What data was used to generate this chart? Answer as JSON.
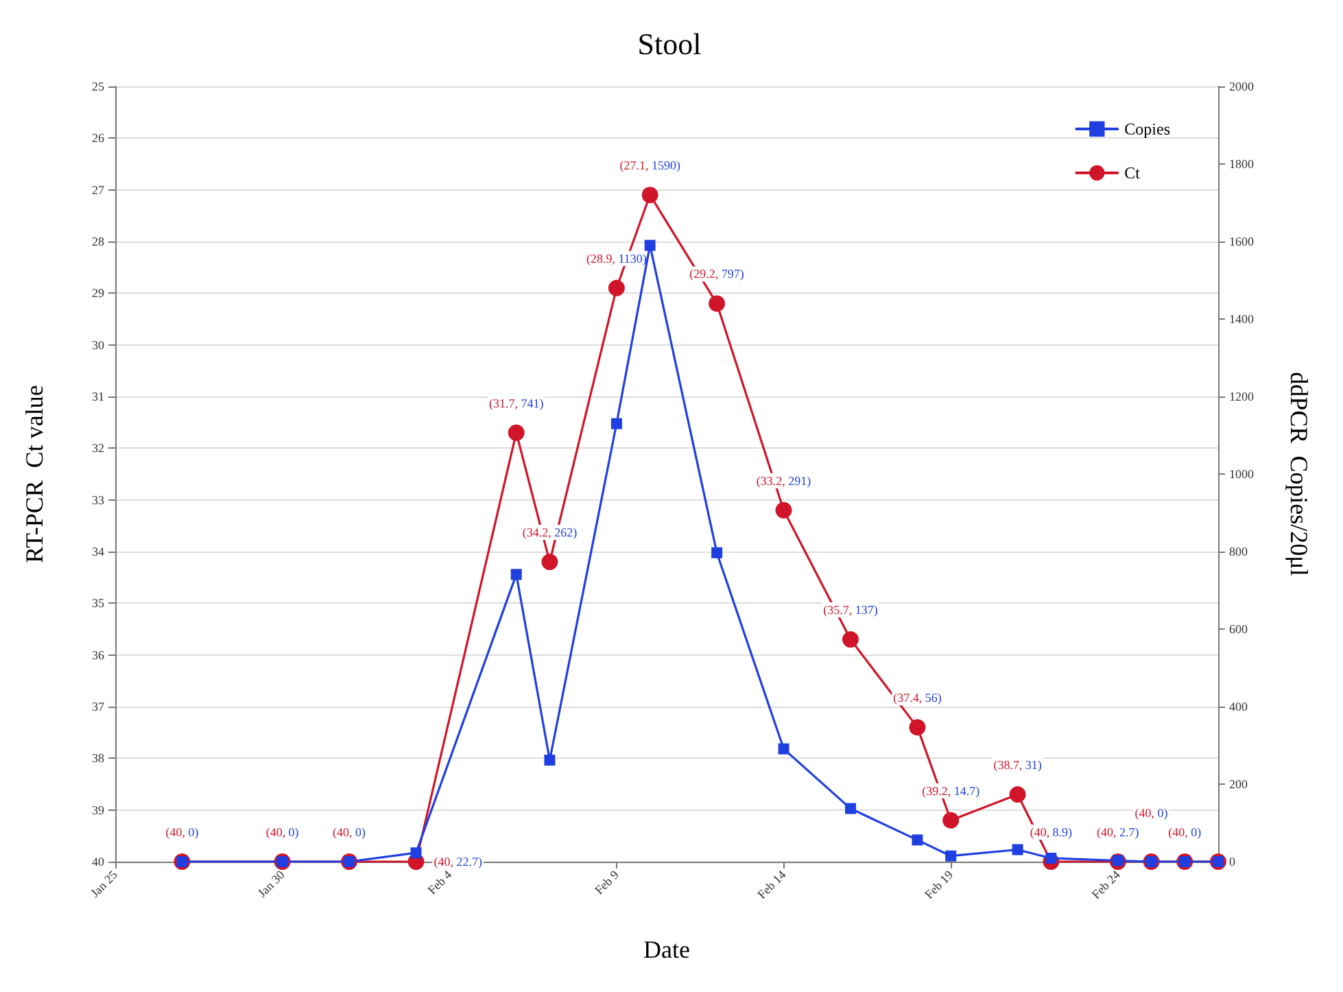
{
  "chart_data": {
    "type": "line",
    "title": "Stool",
    "xlabel": "Date",
    "ylabel": "RT-PCR  Ct value",
    "y2label": "ddPCR  Copies/20μl",
    "x": [
      "--01-27",
      "--01-30",
      "--02-01",
      "--02-03",
      "--02-06",
      "--02-07",
      "--02-09",
      "--02-10",
      "--02-12",
      "--02-14",
      "--02-16",
      "--02-18",
      "--02-19",
      "--02-21",
      "--02-22",
      "--02-24",
      "--02-25",
      "--02-26",
      "--02-27"
    ],
    "series": [
      {
        "name": "Copies",
        "color": "#1f3fe0",
        "axis": "y2",
        "marker": "square",
        "values": [
          0,
          0,
          0,
          22.7,
          741,
          262,
          1130,
          1590,
          797,
          291,
          137,
          56,
          14.7,
          31,
          8.9,
          2.7,
          0,
          0,
          0
        ]
      },
      {
        "name": "Ct",
        "color": "#d0152a",
        "marker": "circle",
        "values": [
          40,
          40,
          40,
          40,
          31.7,
          34.2,
          28.9,
          27.1,
          29.2,
          33.2,
          35.7,
          37.4,
          39.2,
          38.7,
          40,
          40,
          40,
          40,
          40
        ],
        "value_labels": [
          "(40, 0)",
          "(40, 0)",
          "(40, 0)",
          "(40, 22.7)",
          "(31.7, 741)",
          "(34.2, 262)",
          "(28.9, 1130)",
          "(27.1, 1590)",
          "(29.2, 797)",
          "(33.2, 291)",
          "(35.7, 137)",
          "(37.4, 56)",
          "(39.2, 14.7)",
          "(38.7, 31)",
          "(40, 8.9)",
          "(40, 2.7)",
          "(40, 0)",
          "(40, 0)",
          null
        ]
      }
    ],
    "xlim": [
      "--01-25",
      "--02-27"
    ],
    "xticks": [
      {
        "value": "--01-25",
        "label": "Jan 25"
      },
      {
        "value": "--01-30",
        "label": "Jan 30"
      },
      {
        "value": "--02-04",
        "label": "Feb 4"
      },
      {
        "value": "--02-09",
        "label": "Feb 9"
      },
      {
        "value": "--02-14",
        "label": "Feb 14"
      },
      {
        "value": "--02-19",
        "label": "Feb 19"
      },
      {
        "value": "--02-24",
        "label": "Feb 24"
      }
    ],
    "ylim": [
      40,
      25
    ],
    "yticks": [
      25,
      26,
      27,
      28,
      29,
      30,
      31,
      32,
      33,
      34,
      35,
      36,
      37,
      38,
      39,
      40
    ],
    "y2lim": [
      0,
      2000
    ],
    "y2ticks": [
      0,
      200,
      400,
      600,
      800,
      1000,
      1200,
      1400,
      1600,
      1800,
      2000
    ],
    "grid": "y",
    "legend": "top right",
    "line_style": "solid"
  }
}
